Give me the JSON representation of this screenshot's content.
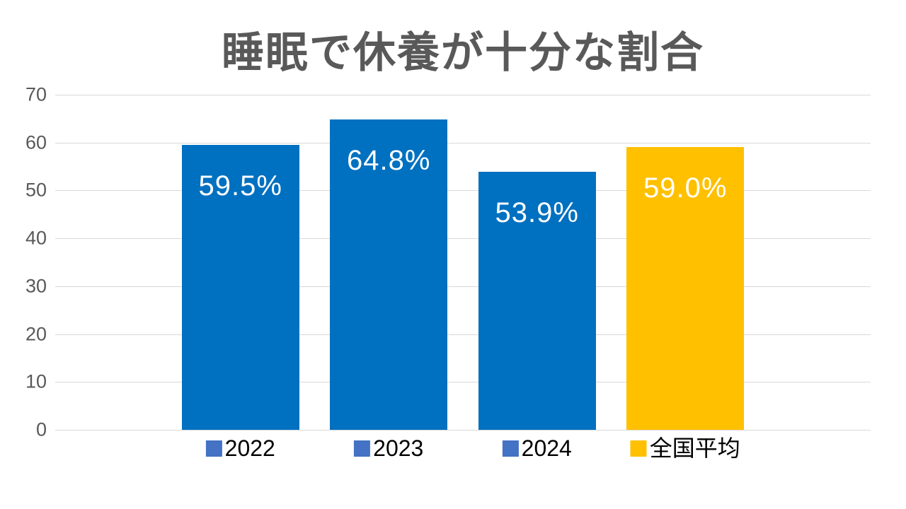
{
  "title": "睡眠で休養が十分な割合",
  "colors": {
    "bar_blue": "#0070C0",
    "bar_yellow": "#FFC000",
    "marker_blue": "#4472C4",
    "marker_yellow": "#FFC000",
    "gridline": "#D9D9D9",
    "axis_text": "#595959",
    "title_text": "#595959",
    "data_label_text": "#FFFFFF",
    "category_text": "#000000"
  },
  "chart_data": {
    "type": "bar",
    "title": "睡眠で休養が十分な割合",
    "categories": [
      "2022",
      "2023",
      "2024",
      "全国平均"
    ],
    "values": [
      59.5,
      64.8,
      53.9,
      59.0
    ],
    "data_labels": [
      "59.5%",
      "64.8%",
      "53.9%",
      "59.0%"
    ],
    "bar_colors": [
      "#0070C0",
      "#0070C0",
      "#0070C0",
      "#FFC000"
    ],
    "marker_colors": [
      "#4472C4",
      "#4472C4",
      "#4472C4",
      "#FFC000"
    ],
    "xlabel": "",
    "ylabel": "",
    "ylim": [
      0,
      70
    ],
    "yticks": [
      0,
      10,
      20,
      30,
      40,
      50,
      60,
      70
    ],
    "grid": true,
    "legend_position": "none",
    "data_label_position": "inside-end"
  }
}
